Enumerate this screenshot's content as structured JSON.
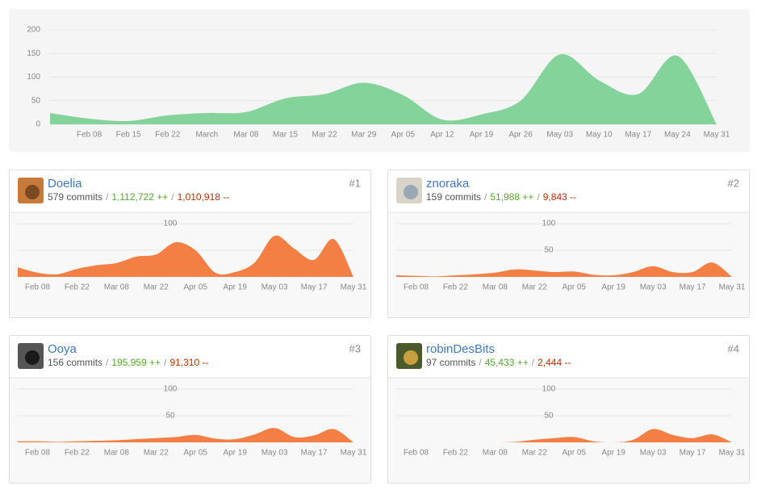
{
  "chart_data": [
    {
      "type": "area",
      "color": "#84d39b",
      "categories": [
        null,
        "Feb 08",
        "Feb 15",
        "Feb 22",
        "March",
        "Mar 08",
        "Mar 15",
        "Mar 22",
        "Mar 29",
        "Apr 05",
        "Apr 12",
        "Apr 19",
        "Apr 26",
        "May 03",
        "May 10",
        "May 17",
        "May 24",
        "May 31"
      ],
      "values": [
        24,
        12,
        7,
        19,
        24,
        26,
        55,
        64,
        88,
        62,
        10,
        21,
        50,
        148,
        93,
        64,
        145,
        0
      ],
      "ylim": [
        0,
        200
      ],
      "yticks": [
        0,
        50,
        100,
        150,
        200
      ],
      "grid": true
    },
    {
      "type": "area",
      "color": "#f37f45",
      "categories": [
        null,
        "Feb 08",
        null,
        "Feb 22",
        null,
        "Mar 08",
        null,
        "Mar 22",
        null,
        "Apr 05",
        null,
        "Apr 19",
        null,
        "May 03",
        null,
        "May 17",
        null,
        "May 31"
      ],
      "values": [
        18,
        8,
        5,
        15,
        22,
        26,
        38,
        42,
        65,
        50,
        8,
        9,
        27,
        77,
        53,
        32,
        71,
        0
      ],
      "ylim": [
        0,
        100
      ],
      "yticks": [
        50,
        100
      ],
      "grid": true
    },
    {
      "type": "area",
      "color": "#f37f45",
      "categories": [
        null,
        "Feb 08",
        null,
        "Feb 22",
        null,
        "Mar 08",
        null,
        "Mar 22",
        null,
        "Apr 05",
        null,
        "Apr 19",
        null,
        "May 03",
        null,
        "May 17",
        null,
        "May 31"
      ],
      "values": [
        3,
        2,
        1,
        3,
        5,
        8,
        14,
        12,
        9,
        10,
        4,
        3,
        9,
        20,
        9,
        9,
        27,
        0
      ],
      "ylim": [
        0,
        100
      ],
      "yticks": [
        50,
        100
      ],
      "grid": true
    },
    {
      "type": "area",
      "color": "#f37f45",
      "categories": [
        null,
        "Feb 08",
        null,
        "Feb 22",
        null,
        "Mar 08",
        null,
        "Mar 22",
        null,
        "Apr 05",
        null,
        "Apr 19",
        null,
        "May 03",
        null,
        "May 17",
        null,
        "May 31"
      ],
      "values": [
        2,
        2,
        1,
        2,
        3,
        4,
        6,
        8,
        10,
        14,
        7,
        6,
        15,
        27,
        10,
        13,
        25,
        0
      ],
      "ylim": [
        0,
        100
      ],
      "yticks": [
        50,
        100
      ],
      "grid": true
    },
    {
      "type": "area",
      "color": "#f37f45",
      "categories": [
        null,
        "Feb 08",
        null,
        "Feb 22",
        null,
        "Mar 08",
        null,
        "Mar 22",
        null,
        "Apr 05",
        null,
        "Apr 19",
        null,
        "May 03",
        null,
        "May 17",
        null,
        "May 31"
      ],
      "values": [
        0,
        0,
        0,
        0,
        0,
        0,
        1,
        5,
        8,
        10,
        2,
        0,
        5,
        25,
        14,
        8,
        15,
        0
      ],
      "ylim": [
        0,
        100
      ],
      "yticks": [
        50,
        100
      ],
      "grid": true
    }
  ],
  "separator": "/",
  "contributors": [
    {
      "name": "Doelia",
      "rank": "#1",
      "commits": "579 commits",
      "additions": "1,112,722 ++",
      "deletions": "1,010,918 --"
    },
    {
      "name": "znoraka",
      "rank": "#2",
      "commits": "159 commits",
      "additions": "51,988 ++",
      "deletions": "9,843 --"
    },
    {
      "name": "Ooya",
      "rank": "#3",
      "commits": "156 commits",
      "additions": "195,959 ++",
      "deletions": "91,310 --"
    },
    {
      "name": "robinDesBits",
      "rank": "#4",
      "commits": "97 commits",
      "additions": "45,433 ++",
      "deletions": "2,444 --"
    }
  ]
}
